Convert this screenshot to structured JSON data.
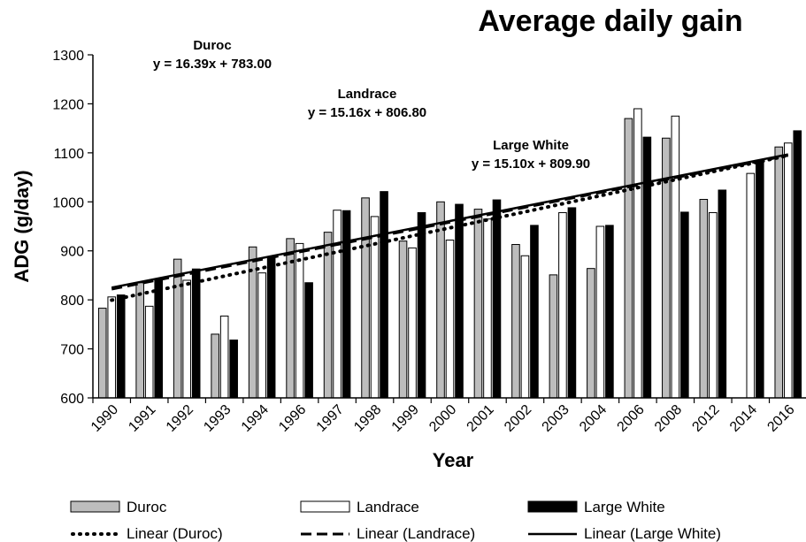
{
  "chart_data": {
    "type": "bar",
    "title": "Average daily gain",
    "xlabel": "Year",
    "ylabel": "ADG (g/day)",
    "ylim": [
      600,
      1300
    ],
    "yticks": [
      600,
      700,
      800,
      900,
      1000,
      1100,
      1200,
      1300
    ],
    "grid": false,
    "legend_position": "bottom",
    "categories": [
      "1990",
      "1991",
      "1992",
      "1993",
      "1994",
      "1996",
      "1997",
      "1998",
      "1999",
      "2000",
      "2001",
      "2002",
      "2003",
      "2004",
      "2006",
      "2008",
      "2012",
      "2014",
      "2016"
    ],
    "series": [
      {
        "name": "Duroc",
        "color": "#bdbdbd",
        "values": [
          783,
          835,
          883,
          730,
          908,
          925,
          938,
          1008,
          920,
          1000,
          985,
          913,
          851,
          864,
          1170,
          1130,
          1005,
          null,
          1112
        ]
      },
      {
        "name": "Landrace",
        "color": "#ffffff",
        "values": [
          806,
          787,
          840,
          767,
          855,
          915,
          983,
          970,
          906,
          922,
          965,
          890,
          978,
          950,
          1190,
          1175,
          978,
          1058,
          1120
        ]
      },
      {
        "name": "Large White",
        "color": "#000000",
        "values": [
          810,
          843,
          863,
          718,
          885,
          835,
          982,
          1021,
          978,
          995,
          1004,
          952,
          988,
          952,
          1132,
          979,
          1024,
          1085,
          1145
        ]
      }
    ],
    "trendlines": [
      {
        "name": "Linear (Duroc)",
        "style": "dotted",
        "label": "Duroc",
        "equation": "y = 16.39x + 783.00",
        "slope": 16.39,
        "intercept": 783.0
      },
      {
        "name": "Linear (Landrace)",
        "style": "dashed",
        "label": "Landrace",
        "equation": "y = 15.16x + 806.80",
        "slope": 15.16,
        "intercept": 806.8
      },
      {
        "name": "Linear (Large White)",
        "style": "solid",
        "label": "Large White",
        "equation": "y = 15.10x + 809.90",
        "slope": 15.1,
        "intercept": 809.9
      }
    ]
  }
}
